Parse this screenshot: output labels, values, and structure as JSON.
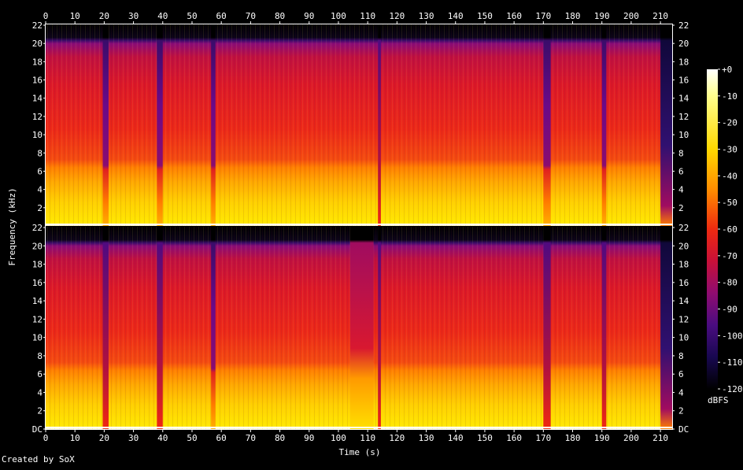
{
  "chart_data": {
    "type": "heatmap",
    "subtype": "spectrogram",
    "xlabel": "Time (s)",
    "ylabel": "Frequency (kHz)",
    "x_ticks": [
      "0",
      "10",
      "20",
      "30",
      "40",
      "50",
      "60",
      "70",
      "80",
      "90",
      "100",
      "110",
      "120",
      "130",
      "140",
      "150",
      "160",
      "170",
      "180",
      "190",
      "200",
      "210"
    ],
    "xlim": [
      0,
      214
    ],
    "channels": [
      {
        "y_ticks": [
          "22",
          "20",
          "18",
          "16",
          "14",
          "12",
          "10",
          "8",
          "6",
          "4",
          "2"
        ],
        "quiet_segments_s": [
          {
            "start": 19.5,
            "end": 21.5,
            "level": "cut"
          },
          {
            "start": 38.0,
            "end": 40.0,
            "level": "cut"
          },
          {
            "start": 56.5,
            "end": 58.0,
            "level": "cut"
          },
          {
            "start": 113.5,
            "end": 114.5,
            "level": "full"
          },
          {
            "start": 170.0,
            "end": 172.5,
            "level": "cut"
          },
          {
            "start": 190.0,
            "end": 191.5,
            "level": "cut"
          },
          {
            "start": 210.0,
            "end": 214.0,
            "level": "fade"
          }
        ]
      },
      {
        "y_ticks": [
          "22",
          "20",
          "18",
          "16",
          "14",
          "12",
          "10",
          "8",
          "6",
          "4",
          "2",
          "DC"
        ],
        "quiet_segments_s": [
          {
            "start": 19.5,
            "end": 21.5,
            "level": "full"
          },
          {
            "start": 38.0,
            "end": 40.0,
            "level": "full"
          },
          {
            "start": 56.5,
            "end": 58.0,
            "level": "cut"
          },
          {
            "start": 104.0,
            "end": 112.0,
            "level": "mid"
          },
          {
            "start": 113.5,
            "end": 114.5,
            "level": "full"
          },
          {
            "start": 170.0,
            "end": 172.5,
            "level": "full"
          },
          {
            "start": 190.0,
            "end": 191.5,
            "level": "full"
          },
          {
            "start": 210.0,
            "end": 214.0,
            "level": "fade"
          }
        ]
      }
    ],
    "ylim_khz": [
      0,
      22
    ],
    "colorbar": {
      "unit": "dBFS",
      "range": [
        -120,
        0
      ],
      "tick_labels": [
        "0",
        "-10",
        "-20",
        "-30",
        "-40",
        "-50",
        "-60",
        "-70",
        "-80",
        "-90",
        "-100",
        "-110",
        "-120"
      ],
      "top_label": "+0",
      "unit_label": "dBFS",
      "colors": [
        "#ffffff",
        "#ffff80",
        "#ffee00",
        "#ffb000",
        "#ff7000",
        "#f02810",
        "#d01030",
        "#a00c60",
        "#6a0a88",
        "#301070",
        "#10083a",
        "#000000"
      ]
    },
    "grid": false,
    "legend": "colorbar-right"
  },
  "credit": "Created by SoX"
}
